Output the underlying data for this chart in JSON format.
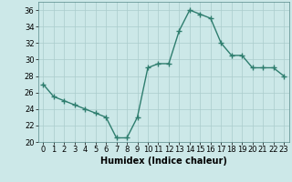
{
  "x": [
    0,
    1,
    2,
    3,
    4,
    5,
    6,
    7,
    8,
    9,
    10,
    11,
    12,
    13,
    14,
    15,
    16,
    17,
    18,
    19,
    20,
    21,
    22,
    23
  ],
  "y": [
    27,
    25.5,
    25,
    24.5,
    24,
    23.5,
    23,
    20.5,
    20.5,
    23,
    29,
    29.5,
    29.5,
    33.5,
    36,
    35.5,
    35,
    32,
    30.5,
    30.5,
    29,
    29,
    29,
    28
  ],
  "xlabel": "Humidex (Indice chaleur)",
  "ylim": [
    20,
    37
  ],
  "xlim": [
    -0.5,
    23.5
  ],
  "yticks": [
    20,
    22,
    24,
    26,
    28,
    30,
    32,
    34,
    36
  ],
  "xticks": [
    0,
    1,
    2,
    3,
    4,
    5,
    6,
    7,
    8,
    9,
    10,
    11,
    12,
    13,
    14,
    15,
    16,
    17,
    18,
    19,
    20,
    21,
    22,
    23
  ],
  "line_color": "#2e7d6e",
  "marker": "+",
  "marker_size": 4,
  "bg_color": "#cce8e8",
  "grid_color": "#aacccc",
  "line_width": 1.0,
  "tick_fontsize": 6,
  "xlabel_fontsize": 7
}
